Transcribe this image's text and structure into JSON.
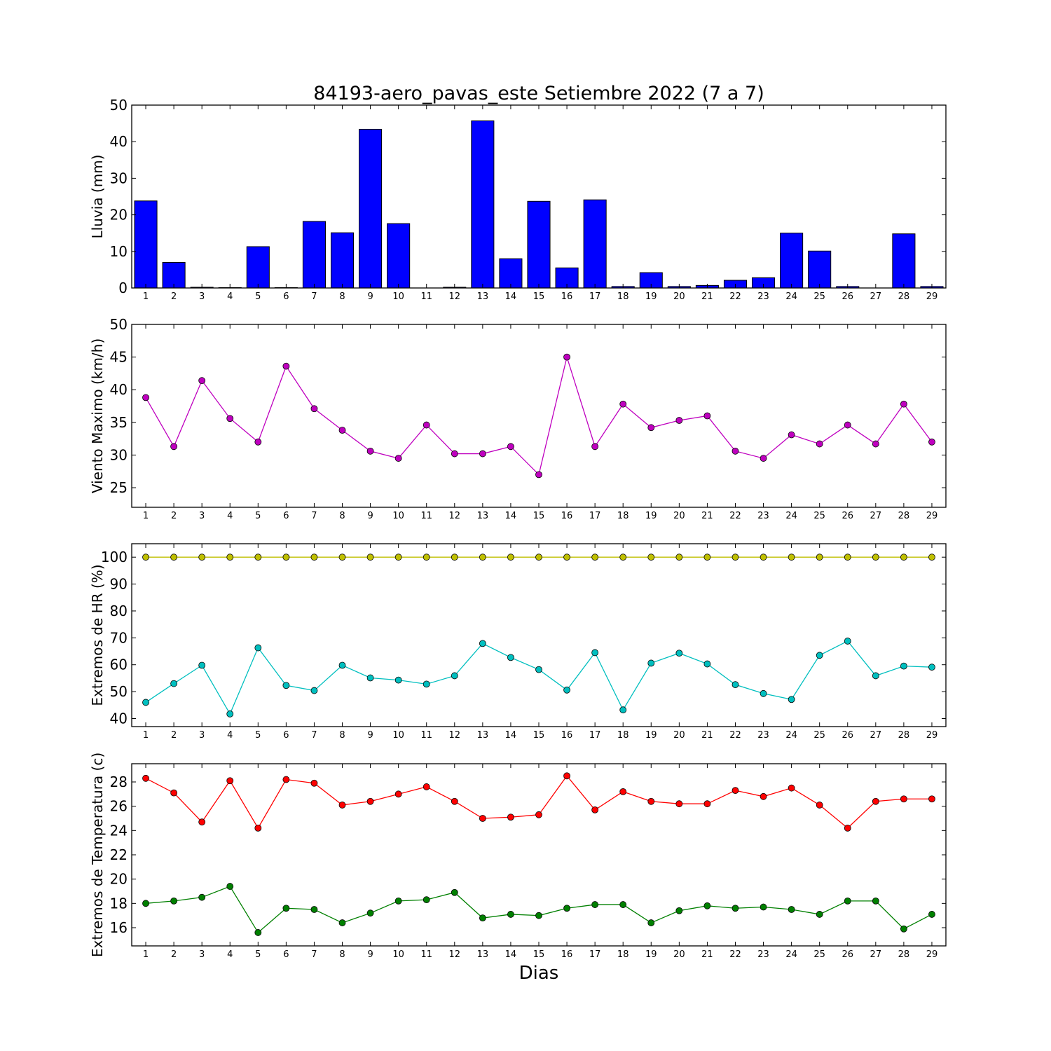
{
  "chart_data": {
    "title": "84193-aero_pavas_este Setiembre 2022  (7 a 7)",
    "xlabel": "Dias",
    "days": [
      1,
      2,
      3,
      4,
      5,
      6,
      7,
      8,
      9,
      10,
      11,
      12,
      13,
      14,
      15,
      16,
      17,
      18,
      19,
      20,
      21,
      22,
      23,
      24,
      25,
      26,
      27,
      28,
      29
    ],
    "panels": [
      {
        "type": "bar",
        "ylabel": "Lluvia (mm)",
        "ylim": [
          0,
          50
        ],
        "yticks": [
          0,
          10,
          20,
          30,
          40,
          50
        ],
        "series": [
          {
            "color": "#0000ff",
            "values": [
              23.8,
              7.0,
              0.2,
              0.1,
              11.3,
              0.1,
              18.2,
              15.1,
              43.4,
              17.6,
              0.0,
              0.2,
              45.7,
              8.0,
              23.7,
              5.5,
              24.1,
              0.4,
              4.2,
              0.4,
              0.7,
              2.1,
              2.8,
              15.0,
              10.1,
              0.4,
              0.0,
              14.8,
              0.4
            ]
          }
        ]
      },
      {
        "type": "line",
        "ylabel": "Viento Maximo (km/h)",
        "ylim": [
          22,
          50
        ],
        "yticks": [
          25,
          30,
          35,
          40,
          45,
          50
        ],
        "series": [
          {
            "color": "#bf00bf",
            "values": [
              38.8,
              31.3,
              41.4,
              35.6,
              32.0,
              43.6,
              37.1,
              33.8,
              30.6,
              29.5,
              34.6,
              30.2,
              30.2,
              31.3,
              27.0,
              45.0,
              31.3,
              37.8,
              34.2,
              35.3,
              36.0,
              30.6,
              29.5,
              33.1,
              31.7,
              34.6,
              31.7,
              37.8,
              32.0
            ]
          }
        ]
      },
      {
        "type": "line",
        "ylabel": "Extremos de HR (%)",
        "ylim": [
          37,
          105
        ],
        "yticks": [
          40,
          50,
          60,
          70,
          80,
          90,
          100
        ],
        "series": [
          {
            "color": "#bfbf00",
            "values": [
              100,
              100,
              100,
              100,
              100,
              100,
              100,
              100,
              100,
              100,
              100,
              100,
              100,
              100,
              100,
              100,
              100,
              100,
              100,
              100,
              100,
              100,
              100,
              100,
              100,
              100,
              100,
              100,
              100
            ]
          },
          {
            "color": "#00bfbf",
            "values": [
              46.0,
              53.0,
              59.8,
              41.7,
              66.3,
              52.3,
              50.4,
              59.8,
              55.1,
              54.3,
              52.8,
              55.9,
              67.9,
              62.7,
              58.2,
              50.6,
              64.5,
              43.2,
              60.6,
              64.3,
              60.3,
              52.6,
              49.3,
              47.1,
              63.5,
              68.8,
              55.9,
              59.5,
              59.1
            ]
          }
        ]
      },
      {
        "type": "line",
        "ylabel": "Extremos de Temperatura (c)",
        "ylim": [
          14.5,
          29.5
        ],
        "yticks": [
          16,
          18,
          20,
          22,
          24,
          26,
          28
        ],
        "series": [
          {
            "color": "#ff0000",
            "values": [
              28.3,
              27.1,
              24.7,
              28.1,
              24.2,
              28.2,
              27.9,
              26.1,
              26.4,
              27.0,
              27.6,
              26.4,
              25.0,
              25.1,
              25.3,
              28.5,
              25.7,
              27.2,
              26.4,
              26.2,
              26.2,
              27.3,
              26.8,
              27.5,
              26.1,
              24.2,
              26.4,
              26.6,
              26.6
            ]
          },
          {
            "color": "#008000",
            "values": [
              18.0,
              18.2,
              18.5,
              19.4,
              15.6,
              17.6,
              17.5,
              16.4,
              17.2,
              18.2,
              18.3,
              18.9,
              16.8,
              17.1,
              17.0,
              17.6,
              17.9,
              17.9,
              16.4,
              17.4,
              17.8,
              17.6,
              17.7,
              17.5,
              17.1,
              18.2,
              18.2,
              15.9,
              17.1
            ]
          }
        ]
      }
    ]
  }
}
